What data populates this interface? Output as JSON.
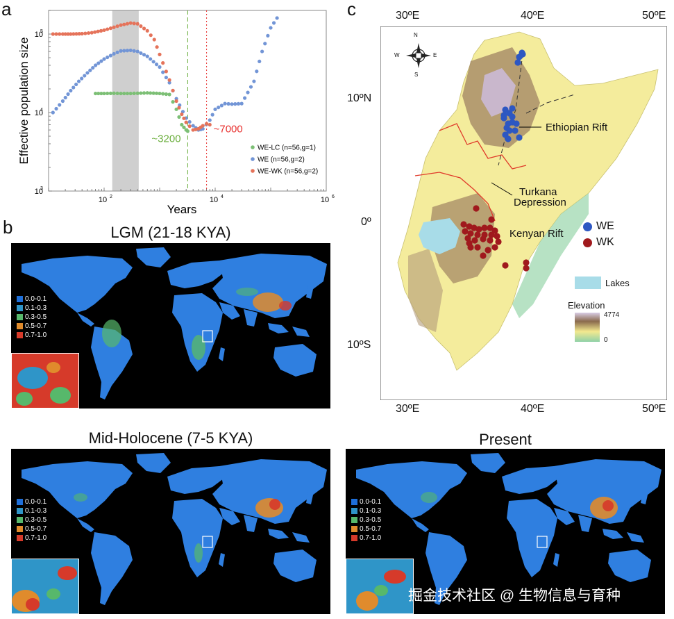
{
  "panels": {
    "a": {
      "letter": "a",
      "ylabel": "Effective population size",
      "xlabel": "Years",
      "y_ticks": [
        {
          "base": "10",
          "exp": "5",
          "v": 100000
        },
        {
          "base": "10",
          "exp": "4",
          "v": 10000
        },
        {
          "base": "10",
          "exp": "3",
          "v": 1000
        }
      ],
      "x_ticks": [
        {
          "base": "10",
          "exp": "2",
          "v": 100
        },
        {
          "base": "10",
          "exp": "4",
          "v": 10000
        },
        {
          "base": "10",
          "exp": "6",
          "v": 1000000
        }
      ],
      "annotations": [
        {
          "text": "~3200",
          "color": "#6aae3c"
        },
        {
          "text": "~7000",
          "color": "#e8312f"
        }
      ],
      "legend": [
        {
          "label": "WE-LC (n=56,g=1)",
          "color": "#7cbf75"
        },
        {
          "label": "WE (n=56,g=2)",
          "color": "#7295d6"
        },
        {
          "label": "WE-WK (n=56,g=2)",
          "color": "#e5735a"
        }
      ]
    },
    "b": {
      "letter": "b",
      "maps": [
        {
          "title": "LGM (21-18 KYA)"
        },
        {
          "title": "Mid-Holocene (7-5 KYA)"
        },
        {
          "title": "Present"
        }
      ],
      "legend": [
        {
          "label": "0.0-0.1",
          "color": "#1e6fd9"
        },
        {
          "label": "0.1-0.3",
          "color": "#2f95c8"
        },
        {
          "label": "0.3-0.5",
          "color": "#57b86b"
        },
        {
          "label": "0.5-0.7",
          "color": "#e08b2c"
        },
        {
          "label": "0.7-1.0",
          "color": "#d63a2a"
        }
      ]
    },
    "c": {
      "letter": "c",
      "lon_top": [
        "30ºE",
        "40ºE",
        "50ºE"
      ],
      "lon_bottom": [
        "30ºE",
        "40ºE",
        "50ºE"
      ],
      "lat": [
        "10ºN",
        "0º",
        "10ºS"
      ],
      "labels": {
        "ethiopian_rift": "Ethiopian Rift",
        "turkana": "Turkana",
        "depression": "Depression",
        "kenyan_rift": "Kenyan Rift"
      },
      "compass": {
        "n": "N",
        "s": "S",
        "e": "E",
        "w": "W"
      },
      "legend": [
        {
          "label": "WE",
          "color": "#2d57c2"
        },
        {
          "label": "WK",
          "color": "#a0191d"
        }
      ],
      "lakes_label": "Lakes",
      "elevation_label": "Elevation",
      "elev_max": "4774",
      "elev_min": "0"
    }
  },
  "chart_data": {
    "type": "scatter",
    "title": "",
    "xlabel": "Years",
    "ylabel": "Effective population size",
    "x_scale": "log",
    "y_scale": "log",
    "xlim": [
      10,
      1000000
    ],
    "ylim": [
      1000,
      200000
    ],
    "grid": false,
    "legend_position": "bottom-right",
    "series": [
      {
        "name": "WE-LC (n=56,g=1)",
        "color": "#7cbf75",
        "x": [
          70,
          100,
          150,
          200,
          300,
          400,
          600,
          1000,
          1500,
          2000,
          2500,
          3000,
          3200
        ],
        "y": [
          17500,
          17500,
          17600,
          17500,
          17500,
          17600,
          17800,
          17500,
          17000,
          11000,
          7000,
          6000,
          5800
        ]
      },
      {
        "name": "WE (n=56,g=2)",
        "color": "#7295d6",
        "x": [
          12,
          18,
          25,
          35,
          50,
          70,
          100,
          150,
          200,
          300,
          400,
          600,
          1000,
          1500,
          2000,
          3000,
          4000,
          5000,
          6000,
          8000,
          10000,
          15000,
          20000,
          30000,
          50000,
          70000,
          100000,
          130000
        ],
        "y": [
          10000,
          14000,
          19000,
          25000,
          32000,
          40000,
          48000,
          56000,
          61000,
          62000,
          60000,
          52000,
          38000,
          24000,
          15000,
          8500,
          6800,
          6000,
          6200,
          8000,
          11000,
          13000,
          12800,
          13000,
          25000,
          60000,
          120000,
          160000
        ]
      },
      {
        "name": "WE-WK (n=56,g=2)",
        "color": "#e5735a",
        "x": [
          12,
          18,
          25,
          40,
          60,
          100,
          150,
          200,
          300,
          400,
          600,
          800,
          1000,
          1500,
          2000,
          2500,
          3000,
          4000,
          5000,
          6000,
          7000,
          8000
        ],
        "y": [
          100000,
          100000,
          100000,
          101000,
          104000,
          112000,
          122000,
          130000,
          138000,
          135000,
          110000,
          85000,
          55000,
          26000,
          14000,
          9500,
          7500,
          6000,
          6200,
          6800,
          7200,
          7000
        ]
      }
    ],
    "shaded_regions": [
      {
        "x_from": 140,
        "x_to": 420
      }
    ],
    "vlines": [
      {
        "x": 3200,
        "color": "#6aae3c",
        "style": "dashed"
      },
      {
        "x": 7000,
        "color": "#e8312f",
        "style": "dotted"
      }
    ]
  },
  "watermark": "掘金技术社区 @ 生物信息与育种"
}
